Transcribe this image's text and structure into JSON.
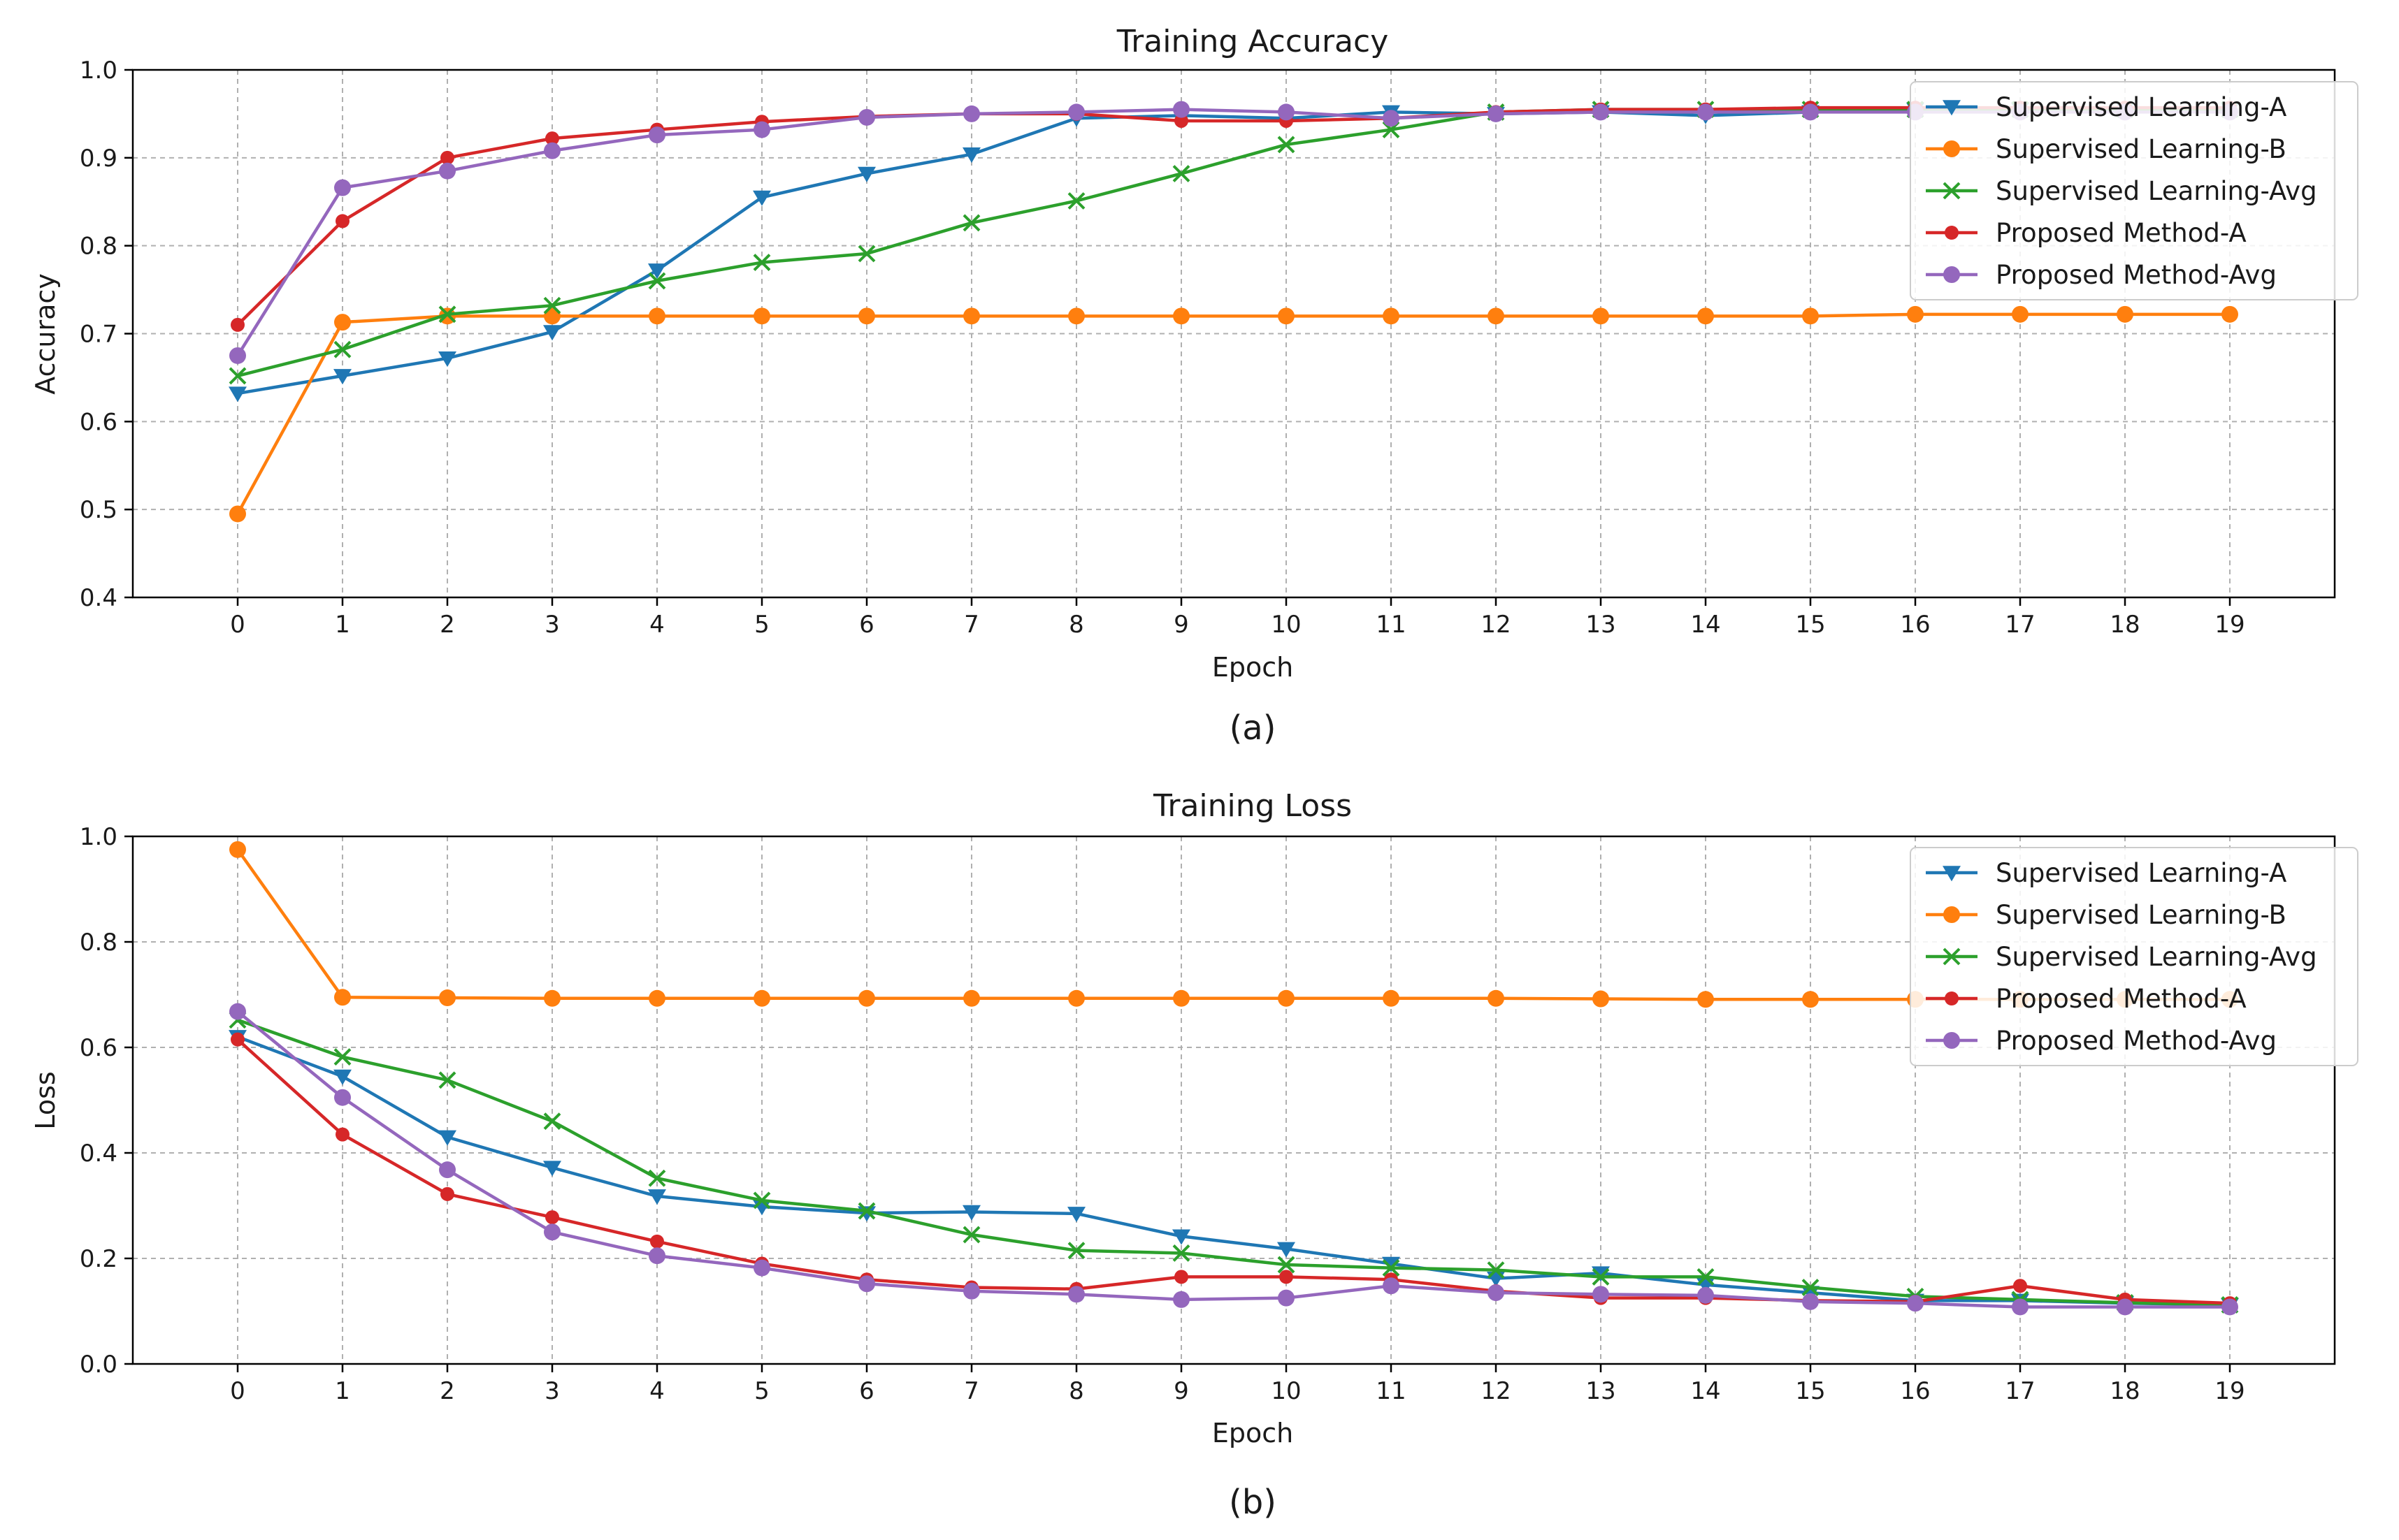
{
  "chart_data": [
    {
      "type": "line",
      "title": "Training Accuracy",
      "xlabel": "Epoch",
      "ylabel": "Accuracy",
      "caption": "(a)",
      "xlim": [
        -1,
        20
      ],
      "ylim": [
        0.4,
        1.0
      ],
      "x": [
        0,
        1,
        2,
        3,
        4,
        5,
        6,
        7,
        8,
        9,
        10,
        11,
        12,
        13,
        14,
        15,
        16,
        17,
        18,
        19
      ],
      "xticks": [
        "0",
        "1",
        "2",
        "3",
        "4",
        "5",
        "6",
        "7",
        "8",
        "9",
        "10",
        "11",
        "12",
        "13",
        "14",
        "15",
        "16",
        "17",
        "18",
        "19"
      ],
      "yticks": [
        "0.4",
        "0.5",
        "0.6",
        "0.7",
        "0.8",
        "0.9",
        "1.0"
      ],
      "ytick_values": [
        0.4,
        0.5,
        0.6,
        0.7,
        0.8,
        0.9,
        1.0
      ],
      "grid": true,
      "legend_position": "top-right",
      "series": [
        {
          "name": "Supervised Learning-A",
          "color": "#1f77b4",
          "marker": "triangle-down",
          "values": [
            0.632,
            0.652,
            0.672,
            0.702,
            0.772,
            0.855,
            0.882,
            0.904,
            0.945,
            0.948,
            0.945,
            0.952,
            0.95,
            0.952,
            0.948,
            0.952,
            0.955,
            0.955,
            0.955,
            0.955
          ]
        },
        {
          "name": "Supervised Learning-B",
          "color": "#ff7f0e",
          "marker": "circle",
          "values": [
            0.495,
            0.713,
            0.72,
            0.72,
            0.72,
            0.72,
            0.72,
            0.72,
            0.72,
            0.72,
            0.72,
            0.72,
            0.72,
            0.72,
            0.72,
            0.72,
            0.722,
            0.722,
            0.722,
            0.722
          ]
        },
        {
          "name": "Supervised Learning-Avg",
          "color": "#2ca02c",
          "marker": "x",
          "values": [
            0.652,
            0.682,
            0.722,
            0.732,
            0.76,
            0.781,
            0.791,
            0.826,
            0.851,
            0.882,
            0.915,
            0.932,
            0.952,
            0.955,
            0.955,
            0.955,
            0.955,
            0.955,
            0.955,
            0.955
          ]
        },
        {
          "name": "Proposed Method-A",
          "color": "#d62728",
          "marker": "circle-small",
          "values": [
            0.71,
            0.828,
            0.9,
            0.922,
            0.932,
            0.941,
            0.947,
            0.95,
            0.95,
            0.942,
            0.942,
            0.945,
            0.952,
            0.955,
            0.955,
            0.957,
            0.957,
            0.957,
            0.957,
            0.957
          ]
        },
        {
          "name": "Proposed Method-Avg",
          "color": "#9467bd",
          "marker": "circle",
          "values": [
            0.675,
            0.866,
            0.885,
            0.908,
            0.926,
            0.932,
            0.946,
            0.95,
            0.952,
            0.955,
            0.952,
            0.945,
            0.95,
            0.952,
            0.952,
            0.952,
            0.952,
            0.952,
            0.952,
            0.952
          ]
        }
      ]
    },
    {
      "type": "line",
      "title": "Training Loss",
      "xlabel": "Epoch",
      "ylabel": "Loss",
      "caption": "(b)",
      "xlim": [
        -1,
        20
      ],
      "ylim": [
        0.0,
        1.0
      ],
      "x": [
        0,
        1,
        2,
        3,
        4,
        5,
        6,
        7,
        8,
        9,
        10,
        11,
        12,
        13,
        14,
        15,
        16,
        17,
        18,
        19
      ],
      "xticks": [
        "0",
        "1",
        "2",
        "3",
        "4",
        "5",
        "6",
        "7",
        "8",
        "9",
        "10",
        "11",
        "12",
        "13",
        "14",
        "15",
        "16",
        "17",
        "18",
        "19"
      ],
      "yticks": [
        "0.0",
        "0.2",
        "0.4",
        "0.6",
        "0.8",
        "1.0"
      ],
      "ytick_values": [
        0.0,
        0.2,
        0.4,
        0.6,
        0.8,
        1.0
      ],
      "grid": true,
      "legend_position": "top-right",
      "series": [
        {
          "name": "Supervised Learning-A",
          "color": "#1f77b4",
          "marker": "triangle-down",
          "values": [
            0.62,
            0.545,
            0.43,
            0.372,
            0.318,
            0.298,
            0.286,
            0.288,
            0.285,
            0.242,
            0.218,
            0.19,
            0.162,
            0.172,
            0.15,
            0.135,
            0.12,
            0.12,
            0.115,
            0.112
          ]
        },
        {
          "name": "Supervised Learning-B",
          "color": "#ff7f0e",
          "marker": "circle",
          "values": [
            0.975,
            0.695,
            0.694,
            0.693,
            0.693,
            0.693,
            0.693,
            0.693,
            0.693,
            0.693,
            0.693,
            0.693,
            0.693,
            0.692,
            0.691,
            0.691,
            0.691,
            0.691,
            0.691,
            0.691
          ]
        },
        {
          "name": "Supervised Learning-Avg",
          "color": "#2ca02c",
          "marker": "x",
          "values": [
            0.652,
            0.582,
            0.538,
            0.46,
            0.352,
            0.31,
            0.29,
            0.245,
            0.215,
            0.21,
            0.188,
            0.182,
            0.178,
            0.165,
            0.165,
            0.145,
            0.128,
            0.122,
            0.116,
            0.112
          ]
        },
        {
          "name": "Proposed Method-A",
          "color": "#d62728",
          "marker": "circle-small",
          "values": [
            0.615,
            0.435,
            0.322,
            0.278,
            0.232,
            0.19,
            0.16,
            0.145,
            0.142,
            0.165,
            0.165,
            0.16,
            0.138,
            0.125,
            0.125,
            0.12,
            0.118,
            0.148,
            0.122,
            0.115
          ]
        },
        {
          "name": "Proposed Method-Avg",
          "color": "#9467bd",
          "marker": "circle",
          "values": [
            0.668,
            0.505,
            0.368,
            0.25,
            0.205,
            0.182,
            0.152,
            0.138,
            0.132,
            0.122,
            0.125,
            0.148,
            0.135,
            0.132,
            0.13,
            0.118,
            0.115,
            0.108,
            0.108,
            0.108
          ]
        }
      ]
    }
  ]
}
